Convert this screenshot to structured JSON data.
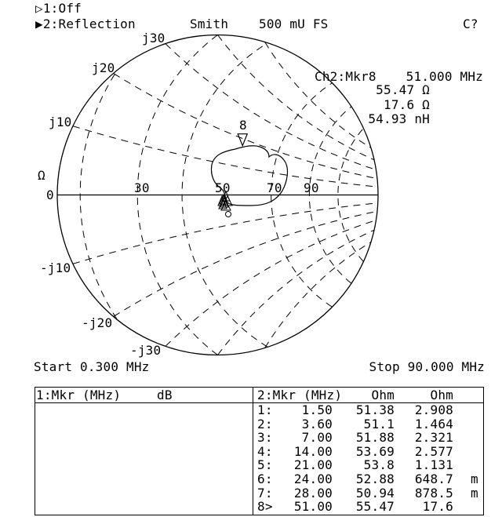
{
  "header": {
    "ch1": {
      "indicator_icon": "hollow-triangle-right",
      "label": "1:Off"
    },
    "ch2": {
      "indicator_icon": "filled-triangle-right",
      "label": "2:Reflection"
    },
    "format": "Smith",
    "scale": "500 mU FS",
    "status": "C?"
  },
  "marker_readout": {
    "title": "Ch2:Mkr8",
    "frequency": "51.000 MHz",
    "resistance": "55.47 Ω",
    "reactance": "17.6 Ω",
    "inductance": "54.93 nH"
  },
  "smith": {
    "z0": 50,
    "full_scale": 0.5,
    "real_axis_labels": {
      "zero": "0",
      "ohm": "Ω",
      "r30": "30",
      "r50": "50",
      "r70": "70",
      "r90": "90"
    },
    "reactance_labels": {
      "j30": "j30",
      "j20": "j20",
      "j10": "j10",
      "mj10": "-j10",
      "mj20": "-j20",
      "mj30": "-j30"
    },
    "active_marker_label": "8",
    "active_marker": {
      "r": 55.47,
      "x": 17.6
    },
    "colors": {
      "trace": "#000000",
      "grid": "#000000",
      "background": "#ffffff"
    }
  },
  "sweep": {
    "start": "Start 0.300 MHz",
    "stop": "Stop 90.000 MHz"
  },
  "table1": {
    "header_mkr": "1:Mkr (MHz)",
    "header_unit": "dB"
  },
  "table2": {
    "header_mkr": "2:Mkr (MHz)",
    "header_col1": "Ohm",
    "header_col2": "Ohm",
    "rows": [
      {
        "idx": "1:",
        "freq": "1.50",
        "r": "51.38",
        "x": "2.908",
        "unit": ""
      },
      {
        "idx": "2:",
        "freq": "3.60",
        "r": "51.1",
        "x": "1.464",
        "unit": ""
      },
      {
        "idx": "3:",
        "freq": "7.00",
        "r": "51.88",
        "x": "2.321",
        "unit": ""
      },
      {
        "idx": "4:",
        "freq": "14.00",
        "r": "53.69",
        "x": "2.577",
        "unit": ""
      },
      {
        "idx": "5:",
        "freq": "21.00",
        "r": "53.8",
        "x": "1.131",
        "unit": ""
      },
      {
        "idx": "6:",
        "freq": "24.00",
        "r": "52.88",
        "x": "648.7",
        "unit": "m"
      },
      {
        "idx": "7:",
        "freq": "28.00",
        "r": "50.94",
        "x": "878.5",
        "unit": "m"
      },
      {
        "idx": "8>",
        "freq": "51.00",
        "r": "55.47",
        "x": "17.6",
        "unit": ""
      }
    ]
  }
}
